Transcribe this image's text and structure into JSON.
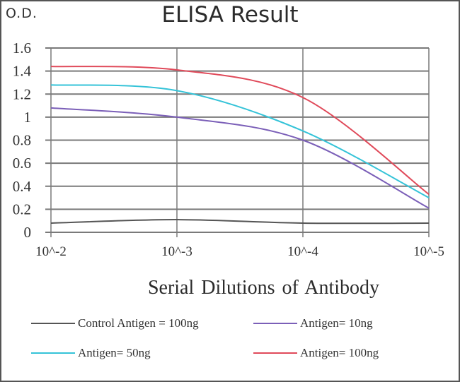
{
  "chart": {
    "title": "ELISA Result",
    "y_axis_title": "O.D.",
    "x_axis_title": "Serial Dilutions  of Antibody",
    "y_ticks": [
      "1.6",
      "1.4",
      "1.2",
      "1",
      "0.8",
      "0.6",
      "0.4",
      "0.2",
      "0"
    ],
    "x_ticks": [
      "10^-2",
      "10^-3",
      "10^-4",
      "10^-5"
    ],
    "legend": [
      {
        "label": "Control Antigen = 100ng",
        "color": "#555555"
      },
      {
        "label": "Antigen= 10ng",
        "color": "#7b5fb8"
      },
      {
        "label": "Antigen= 50ng",
        "color": "#35c3d8"
      },
      {
        "label": "Antigen= 100ng",
        "color": "#e04a5a"
      }
    ]
  },
  "chart_data": {
    "type": "line",
    "title": "ELISA Result",
    "xlabel": "Serial Dilutions of Antibody",
    "ylabel": "O.D.",
    "categories": [
      "10^-2",
      "10^-3",
      "10^-4",
      "10^-5"
    ],
    "ylim": [
      0,
      1.6
    ],
    "yticks": [
      0,
      0.2,
      0.4,
      0.6,
      0.8,
      1,
      1.2,
      1.4,
      1.6
    ],
    "grid": "horizontal and vertical",
    "legend_position": "bottom",
    "series": [
      {
        "name": "Control Antigen = 100ng",
        "color": "#555555",
        "values": [
          0.08,
          0.11,
          0.08,
          0.08
        ]
      },
      {
        "name": "Antigen= 10ng",
        "color": "#7b5fb8",
        "values": [
          1.08,
          1.0,
          0.8,
          0.21
        ]
      },
      {
        "name": "Antigen= 50ng",
        "color": "#35c3d8",
        "values": [
          1.28,
          1.23,
          0.88,
          0.3
        ]
      },
      {
        "name": "Antigen= 100ng",
        "color": "#e04a5a",
        "values": [
          1.44,
          1.41,
          1.17,
          0.33
        ]
      }
    ]
  }
}
